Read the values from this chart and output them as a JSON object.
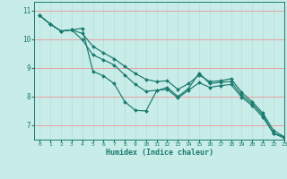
{
  "xlabel": "Humidex (Indice chaleur)",
  "bg_color": "#c8ece8",
  "line_color": "#1a7a6e",
  "grid_color_h": "#e8a0a0",
  "grid_color_v": "#b8deda",
  "xlim": [
    -0.5,
    23
  ],
  "ylim": [
    6.5,
    11.3
  ],
  "xticks": [
    0,
    1,
    2,
    3,
    4,
    5,
    6,
    7,
    8,
    9,
    10,
    11,
    12,
    13,
    14,
    15,
    16,
    17,
    18,
    19,
    20,
    21,
    22,
    23
  ],
  "yticks": [
    7,
    8,
    9,
    10,
    11
  ],
  "line1": [
    10.82,
    10.52,
    10.28,
    10.32,
    10.38,
    8.88,
    8.72,
    8.45,
    7.82,
    7.52,
    7.5,
    8.2,
    8.32,
    8.0,
    8.28,
    8.82,
    8.45,
    8.5,
    8.52,
    8.05,
    7.75,
    7.35,
    6.72,
    6.6
  ],
  "line2": [
    10.82,
    10.52,
    10.28,
    10.32,
    10.2,
    9.75,
    9.52,
    9.32,
    9.05,
    8.8,
    8.6,
    8.52,
    8.55,
    8.25,
    8.45,
    8.75,
    8.52,
    8.55,
    8.62,
    8.15,
    7.82,
    7.42,
    6.82,
    6.6
  ],
  "line3": [
    10.82,
    10.52,
    10.28,
    10.32,
    9.98,
    9.45,
    9.28,
    9.1,
    8.75,
    8.42,
    8.18,
    8.22,
    8.25,
    7.95,
    8.22,
    8.48,
    8.32,
    8.38,
    8.42,
    7.98,
    7.68,
    7.28,
    6.72,
    6.55
  ],
  "markersize": 2.0
}
